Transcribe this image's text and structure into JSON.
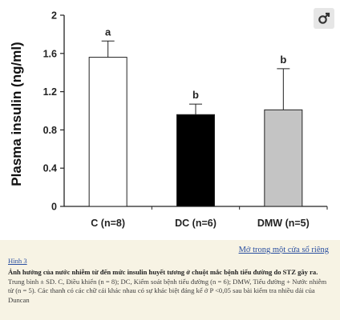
{
  "chart_data": {
    "type": "bar",
    "categories": [
      "C (n=8)",
      "DC (n=6)",
      "DMW (n=5)"
    ],
    "values": [
      1.56,
      0.96,
      1.01
    ],
    "errors": [
      0.17,
      0.11,
      0.43
    ],
    "significance_letters": [
      "a",
      "b",
      "b"
    ],
    "bar_colors": [
      "#ffffff",
      "#000000",
      "#c4c4c4"
    ],
    "ylabel": "Plasma insulin (ng/ml)",
    "xlabel": "",
    "ylim": [
      0,
      2
    ],
    "yticks": [
      0,
      0.4,
      0.8,
      1.2,
      1.6,
      2
    ],
    "ytick_labels": [
      "0",
      "0.4",
      "0.8",
      "1.2",
      "1.6",
      "2"
    ],
    "grid": false,
    "legend": "none"
  },
  "corner_icon": "expand-icon",
  "link": {
    "open_new_window": "Mở trong một cửa sổ riêng"
  },
  "caption": {
    "label": "Hình 3",
    "title": "Ảnh hưởng của nước nhiễm từ đến mức insulin huyết tương ở chuột mắc bệnh tiểu đường do STZ gây ra.",
    "body": "Trung bình ± SD. C, Điều khiển (n = 8); DC, Kiểm soát bệnh tiểu đường (n = 6); DMW, Tiểu đường + Nước nhiễm từ (n = 5). Các thanh có các chữ cái khác nhau có sự khác biệt đáng kể ở P <0,05 sau bài kiểm tra nhiều dải của Duncan"
  }
}
